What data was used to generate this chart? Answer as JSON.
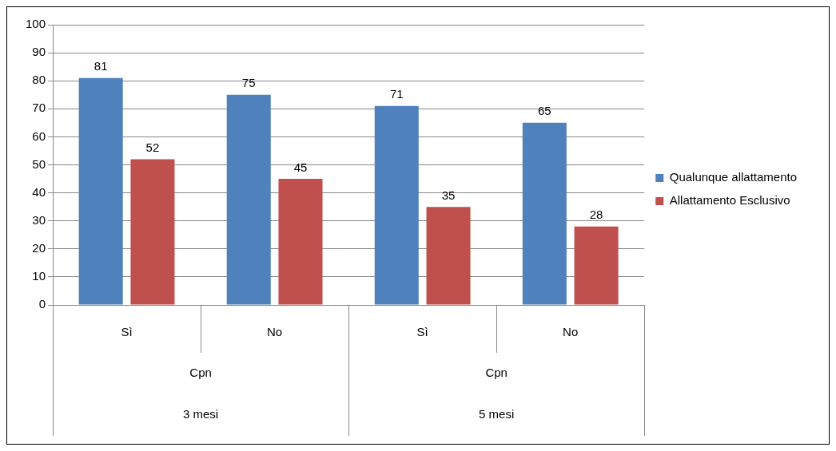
{
  "chart_data": {
    "type": "bar",
    "categories": [
      "Sì",
      "No",
      "Sì",
      "No"
    ],
    "series": [
      {
        "name": "Qualunque allattamento",
        "color": "#4f81bd",
        "values": [
          81,
          75,
          71,
          65
        ]
      },
      {
        "name": "Allattamento Esclusivo",
        "color": "#c0504d",
        "values": [
          52,
          45,
          35,
          28
        ]
      }
    ],
    "annotations": [
      "Cpn",
      "Cpn",
      "3 mesi",
      "5 mesi"
    ],
    "ylim": [
      0,
      100
    ],
    "yticks": [
      0,
      10,
      20,
      30,
      40,
      50,
      60,
      70,
      80,
      90,
      100
    ],
    "grid": "y",
    "legend": "right",
    "data_labels": true
  }
}
